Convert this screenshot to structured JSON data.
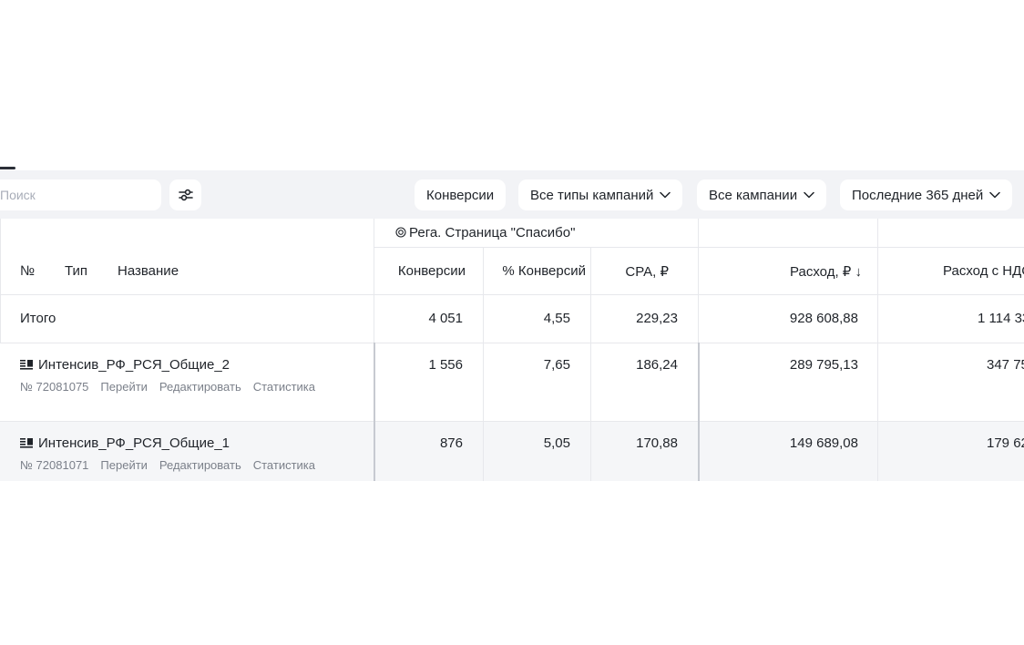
{
  "toolbar": {
    "search_placeholder": "Поиск",
    "filters": {
      "conversions": "Конверсии",
      "campaign_types": "Все типы кампаний",
      "campaigns": "Все кампании",
      "period": "Последние 365 дней"
    }
  },
  "table": {
    "goal_group": "Рега. Страница \"Спасибо\"",
    "headers": {
      "number": "№",
      "type": "Тип",
      "name": "Название",
      "conversions": "Конверсии",
      "conversion_rate": "% Конверсий",
      "cpa": "CPA, ₽",
      "spend": "Расход, ₽ ↓",
      "spend_vat": "Расход с НДС"
    },
    "total": {
      "label": "Итого",
      "conversions": "4 051",
      "conversion_rate": "4,55",
      "cpa": "229,23",
      "spend": "928 608,88",
      "spend_vat": "1 114 33"
    },
    "rows": [
      {
        "name": "Интенсив_РФ_РСЯ_Общие_2",
        "id": "№ 72081075",
        "actions": [
          "Перейти",
          "Редактировать",
          "Статистика"
        ],
        "conversions": "1 556",
        "conversion_rate": "7,65",
        "cpa": "186,24",
        "spend": "289 795,13",
        "spend_vat": "347 75"
      },
      {
        "name": "Интенсив_РФ_РСЯ_Общие_1",
        "id": "№ 72081071",
        "actions": [
          "Перейти",
          "Редактировать",
          "Статистика"
        ],
        "conversions": "876",
        "conversion_rate": "5,05",
        "cpa": "170,88",
        "spend": "149 689,08",
        "spend_vat": "179 62"
      }
    ]
  },
  "icons": {
    "settings": "sliders-icon",
    "chevron": "chevron-down-icon",
    "goal": "target-icon",
    "campaign": "network-campaign-icon"
  },
  "colors": {
    "toolbar_bg": "#f2f3f6",
    "muted_text": "#7b808a",
    "hover_row": "#f5f6f8"
  }
}
